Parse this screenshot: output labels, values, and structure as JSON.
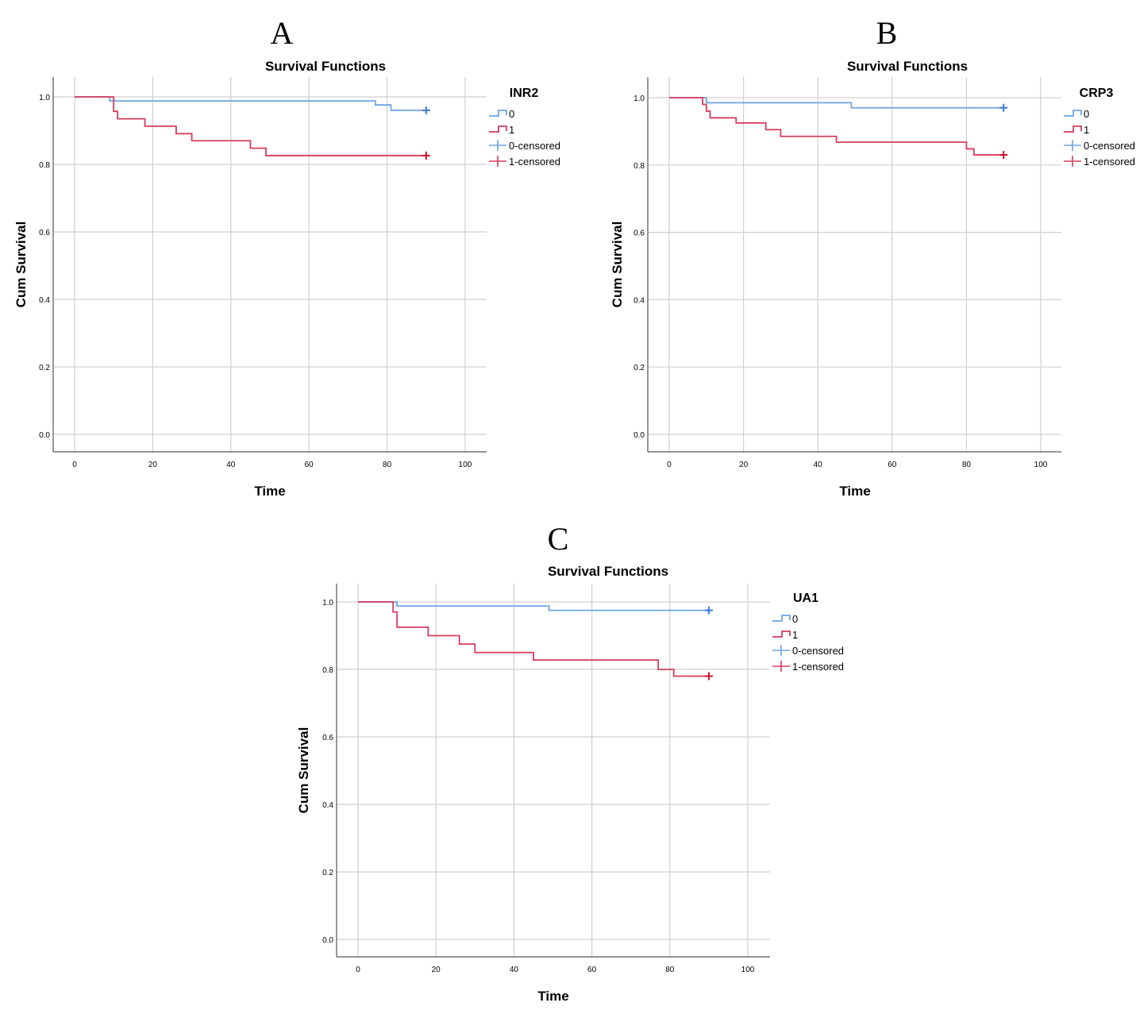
{
  "chart_data": [
    {
      "panel": "A",
      "type": "line",
      "title": "Survival Functions",
      "xlabel": "Time",
      "ylabel": "Cum Survival",
      "xlim": [
        0,
        100
      ],
      "ylim": [
        0,
        1
      ],
      "xticks": [
        "0",
        "20",
        "40",
        "60",
        "80",
        "100"
      ],
      "yticks": [
        "0.0",
        "0.2",
        "0.4",
        "0.6",
        "0.8",
        "1.0"
      ],
      "legend_title": "INR2",
      "legend": [
        "0",
        "1",
        "0-censored",
        "1-censored"
      ],
      "series": [
        {
          "name": "0",
          "color": "#6fa3e0",
          "censor_color": "#3a78d6",
          "steps": [
            [
              0,
              1.0
            ],
            [
              9,
              0.988
            ],
            [
              77,
              0.976
            ],
            [
              81,
              0.96
            ]
          ],
          "end_x": 90,
          "censored": [
            [
              90,
              0.96
            ]
          ]
        },
        {
          "name": "1",
          "color": "#d63d5e",
          "censor_color": "#c8102e",
          "steps": [
            [
              0,
              1.0
            ],
            [
              10,
              0.957
            ],
            [
              11,
              0.935
            ],
            [
              18,
              0.913
            ],
            [
              26,
              0.891
            ],
            [
              30,
              0.87
            ],
            [
              45,
              0.848
            ],
            [
              49,
              0.826
            ]
          ],
          "end_x": 90,
          "censored": [
            [
              90,
              0.826
            ]
          ]
        }
      ]
    },
    {
      "panel": "B",
      "type": "line",
      "title": "Survival Functions",
      "xlabel": "Time",
      "ylabel": "Cum Survival",
      "xlim": [
        0,
        100
      ],
      "ylim": [
        0,
        1
      ],
      "xticks": [
        "0",
        "20",
        "40",
        "60",
        "80",
        "100"
      ],
      "yticks": [
        "0.0",
        "0.2",
        "0.4",
        "0.6",
        "0.8",
        "1.0"
      ],
      "legend_title": "CRP3",
      "legend": [
        "0",
        "1",
        "0-censored",
        "1-censored"
      ],
      "series": [
        {
          "name": "0",
          "color": "#6fa3e0",
          "censor_color": "#3a78d6",
          "steps": [
            [
              0,
              1.0
            ],
            [
              10,
              0.985
            ],
            [
              49,
              0.97
            ]
          ],
          "end_x": 90,
          "censored": [
            [
              90,
              0.97
            ]
          ]
        },
        {
          "name": "1",
          "color": "#d63d5e",
          "censor_color": "#c8102e",
          "steps": [
            [
              0,
              1.0
            ],
            [
              9,
              0.98
            ],
            [
              10,
              0.96
            ],
            [
              11,
              0.94
            ],
            [
              18,
              0.925
            ],
            [
              26,
              0.905
            ],
            [
              30,
              0.885
            ],
            [
              45,
              0.868
            ],
            [
              80,
              0.848
            ],
            [
              82,
              0.83
            ]
          ],
          "end_x": 90,
          "censored": [
            [
              90,
              0.83
            ]
          ]
        }
      ]
    },
    {
      "panel": "C",
      "type": "line",
      "title": "Survival Functions",
      "xlabel": "Time",
      "ylabel": "Cum Survival",
      "xlim": [
        0,
        100
      ],
      "ylim": [
        0,
        1
      ],
      "xticks": [
        "0",
        "20",
        "40",
        "60",
        "80",
        "100"
      ],
      "yticks": [
        "0.0",
        "0.2",
        "0.4",
        "0.6",
        "0.8",
        "1.0"
      ],
      "legend_title": "UA1",
      "legend": [
        "0",
        "1",
        "0-censored",
        "1-censored"
      ],
      "series": [
        {
          "name": "0",
          "color": "#6fa3e0",
          "censor_color": "#3a78d6",
          "steps": [
            [
              0,
              1.0
            ],
            [
              10,
              0.988
            ],
            [
              49,
              0.975
            ]
          ],
          "end_x": 90,
          "censored": [
            [
              90,
              0.975
            ]
          ]
        },
        {
          "name": "1",
          "color": "#d63d5e",
          "censor_color": "#c8102e",
          "steps": [
            [
              0,
              1.0
            ],
            [
              9,
              0.97
            ],
            [
              10,
              0.925
            ],
            [
              18,
              0.9
            ],
            [
              26,
              0.875
            ],
            [
              30,
              0.85
            ],
            [
              45,
              0.828
            ],
            [
              77,
              0.8
            ],
            [
              81,
              0.78
            ]
          ],
          "end_x": 90,
          "censored": [
            [
              90,
              0.78
            ]
          ]
        }
      ]
    }
  ]
}
